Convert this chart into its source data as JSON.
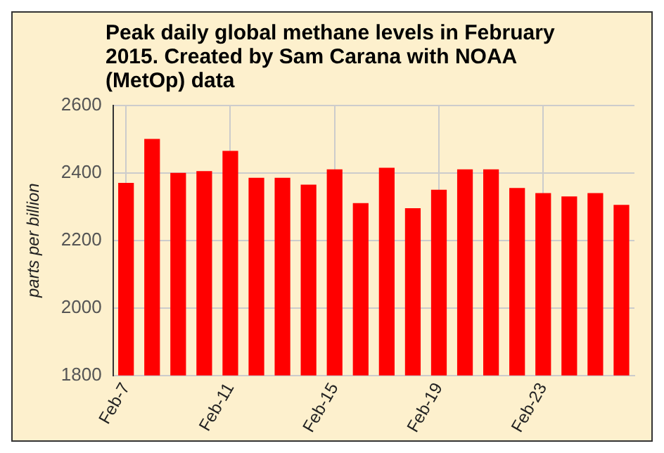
{
  "chart_data": {
    "type": "bar",
    "title": "Peak daily global methane levels in February 2015. Created by Sam Carana with NOAA (MetOp) data",
    "ylabel": "parts per billion",
    "categories": [
      "Feb-7",
      null,
      null,
      null,
      "Feb-11",
      null,
      null,
      null,
      "Feb-15",
      null,
      null,
      null,
      "Feb-19",
      null,
      null,
      null,
      "Feb-23",
      null,
      null,
      null
    ],
    "values": [
      2370,
      2500,
      2400,
      2405,
      2465,
      2385,
      2385,
      2365,
      2410,
      2310,
      2415,
      2295,
      2350,
      2410,
      2410,
      2355,
      2340,
      2330,
      2340,
      2305
    ],
    "color": "#ff0000",
    "ylim": [
      1800,
      2600
    ],
    "yticks": [
      1800,
      2000,
      2200,
      2400,
      2600
    ],
    "grid": true
  }
}
